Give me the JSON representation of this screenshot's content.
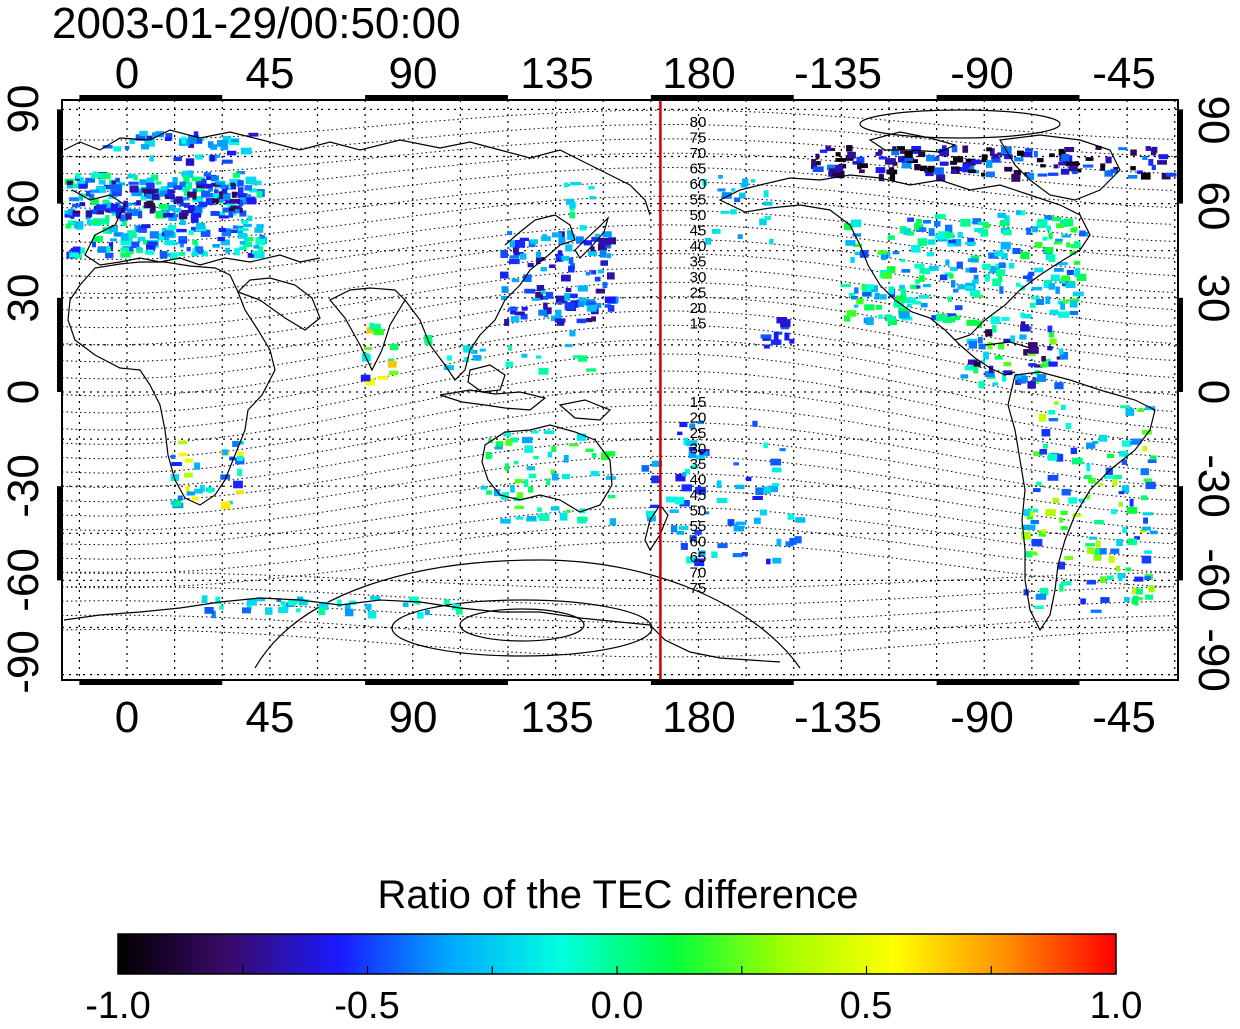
{
  "timestamp": "2003-01-29/00:50:00",
  "axes": {
    "lon_ticks": [
      "0",
      "45",
      "90",
      "135",
      "180",
      "-135",
      "-90",
      "-45"
    ],
    "lat_ticks_left": [
      "90",
      "60",
      "30",
      "0",
      "-30",
      "-60",
      "-90"
    ],
    "lat_ticks_right": [
      "90",
      "60",
      "30",
      "0",
      "-30",
      "-60",
      "-90"
    ]
  },
  "contour_labels": {
    "north": [
      "80",
      "75",
      "70",
      "65",
      "60",
      "55",
      "50",
      "45",
      "40",
      "35",
      "30",
      "25",
      "20",
      "15"
    ],
    "south": [
      "15",
      "20",
      "25",
      "30",
      "35",
      "40",
      "45",
      "50",
      "55",
      "60",
      "65",
      "70",
      "75"
    ]
  },
  "marker_line": {
    "longitude": 168,
    "color": "#cc0000"
  },
  "colorbar": {
    "title": "Ratio of the TEC difference",
    "tick_labels": [
      "-1.0",
      "-0.5",
      "0.0",
      "0.5",
      "1.0"
    ],
    "min": -1.0,
    "max": 1.0,
    "colors": [
      "#000000",
      "#3a0a6a",
      "#1a1aff",
      "#00aaff",
      "#00ffe0",
      "#00ff40",
      "#a0ff00",
      "#ffff00",
      "#ff9000",
      "#ff0000"
    ]
  }
}
